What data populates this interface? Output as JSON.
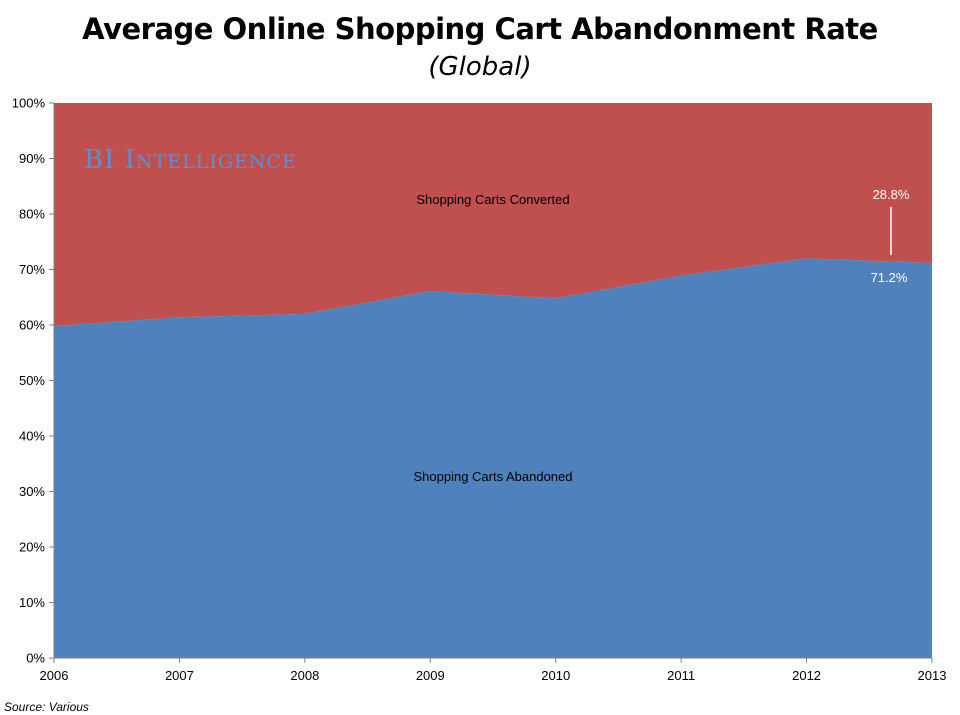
{
  "chart_data": {
    "type": "area",
    "title": "Average Online Shopping Cart Abandonment Rate",
    "subtitle": "(Global)",
    "source": "Source: Various",
    "watermark": "BI Intelligence",
    "x": [
      "2006",
      "2007",
      "2008",
      "2009",
      "2010",
      "2011",
      "2012",
      "2013"
    ],
    "ylim": [
      0,
      100
    ],
    "y_ticks": [
      "0%",
      "10%",
      "20%",
      "30%",
      "40%",
      "50%",
      "60%",
      "70%",
      "80%",
      "90%",
      "100%"
    ],
    "stacked": true,
    "grid": false,
    "series": [
      {
        "name": "Shopping Carts Abandoned",
        "color": "#4f81bd",
        "values": [
          59.8,
          61.4,
          62.0,
          66.1,
          64.8,
          68.9,
          72.0,
          71.2
        ]
      },
      {
        "name": "Shopping Carts Converted",
        "color": "#c0504d",
        "values": [
          40.2,
          38.6,
          38.0,
          33.9,
          35.2,
          31.1,
          28.0,
          28.8
        ]
      }
    ],
    "annotations": [
      {
        "text": "28.8%",
        "series": "Shopping Carts Converted",
        "x": "2013"
      },
      {
        "text": "71.2%",
        "series": "Shopping Carts Abandoned",
        "x": "2013"
      }
    ]
  }
}
